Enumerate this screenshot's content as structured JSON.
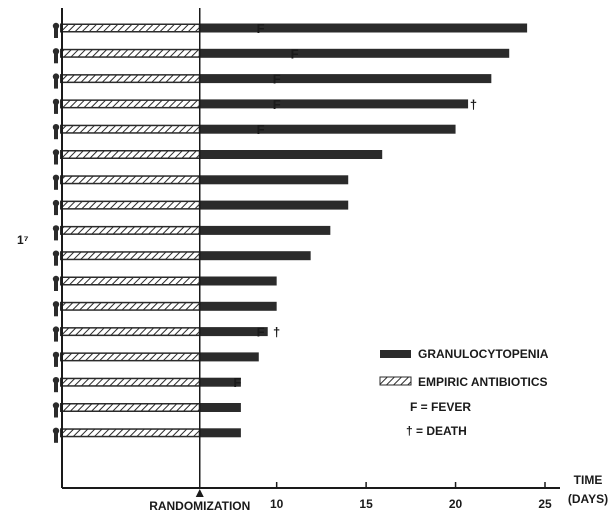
{
  "chart_data": {
    "type": "bar",
    "description_label": "1⁷",
    "x_axis": {
      "label_line1": "TIME",
      "label_line2": "(DAYS)",
      "range": [
        -2,
        25
      ],
      "ticks": [
        10,
        15,
        20,
        25
      ],
      "randomization_day": 5.7,
      "randomization_label": "RANDOMIZATION"
    },
    "patients": [
      {
        "granulocytopenia_end": 24.0,
        "empiric_antibiotics_end": 5.7,
        "markers": [
          {
            "type": "F",
            "day": 9.1
          }
        ]
      },
      {
        "granulocytopenia_end": 23.0,
        "empiric_antibiotics_end": 5.7,
        "markers": [
          {
            "type": "F",
            "day": 11.0
          }
        ]
      },
      {
        "granulocytopenia_end": 22.0,
        "empiric_antibiotics_end": 5.7,
        "markers": [
          {
            "type": "F",
            "day": 10.0
          }
        ]
      },
      {
        "granulocytopenia_end": 20.7,
        "empiric_antibiotics_end": 5.7,
        "markers": [
          {
            "type": "F",
            "day": 10.0
          },
          {
            "type": "†",
            "day": 21.0
          }
        ]
      },
      {
        "granulocytopenia_end": 20.0,
        "empiric_antibiotics_end": 5.7,
        "markers": [
          {
            "type": "F",
            "day": 9.1
          }
        ]
      },
      {
        "granulocytopenia_end": 15.9,
        "empiric_antibiotics_end": 5.7,
        "markers": []
      },
      {
        "granulocytopenia_end": 14.0,
        "empiric_antibiotics_end": 5.7,
        "markers": []
      },
      {
        "granulocytopenia_end": 14.0,
        "empiric_antibiotics_end": 5.7,
        "markers": []
      },
      {
        "granulocytopenia_end": 13.0,
        "empiric_antibiotics_end": 5.7,
        "markers": []
      },
      {
        "granulocytopenia_end": 11.9,
        "empiric_antibiotics_end": 5.7,
        "markers": []
      },
      {
        "granulocytopenia_end": 10.0,
        "empiric_antibiotics_end": 5.7,
        "markers": []
      },
      {
        "granulocytopenia_end": 10.0,
        "empiric_antibiotics_end": 5.7,
        "markers": []
      },
      {
        "granulocytopenia_end": 9.5,
        "empiric_antibiotics_end": 5.7,
        "markers": [
          {
            "type": "F",
            "day": 9.1
          },
          {
            "type": "†",
            "day": 10.0
          }
        ]
      },
      {
        "granulocytopenia_end": 9.0,
        "empiric_antibiotics_end": 5.7,
        "markers": []
      },
      {
        "granulocytopenia_end": 8.0,
        "empiric_antibiotics_end": 5.7,
        "markers": [
          {
            "type": "F",
            "day": 7.8
          }
        ]
      },
      {
        "granulocytopenia_end": 8.0,
        "empiric_antibiotics_end": 5.7,
        "markers": []
      },
      {
        "granulocytopenia_end": 8.0,
        "empiric_antibiotics_end": 5.7,
        "markers": []
      }
    ],
    "legend": {
      "placement": "bottom-right",
      "items": [
        {
          "key": "granulocytopenia",
          "label": "GRANULOCYTOPENIA",
          "style": "solid"
        },
        {
          "key": "empiric_antibiotics",
          "label": "EMPIRIC ANTIBIOTICS",
          "style": "hatched"
        },
        {
          "key": "fever",
          "label": "F = FEVER"
        },
        {
          "key": "death",
          "label": "† = DEATH"
        }
      ]
    },
    "colors": {
      "bar": "#2b2b2b",
      "axis": "#1a1a1a",
      "background": "#ffffff"
    }
  }
}
